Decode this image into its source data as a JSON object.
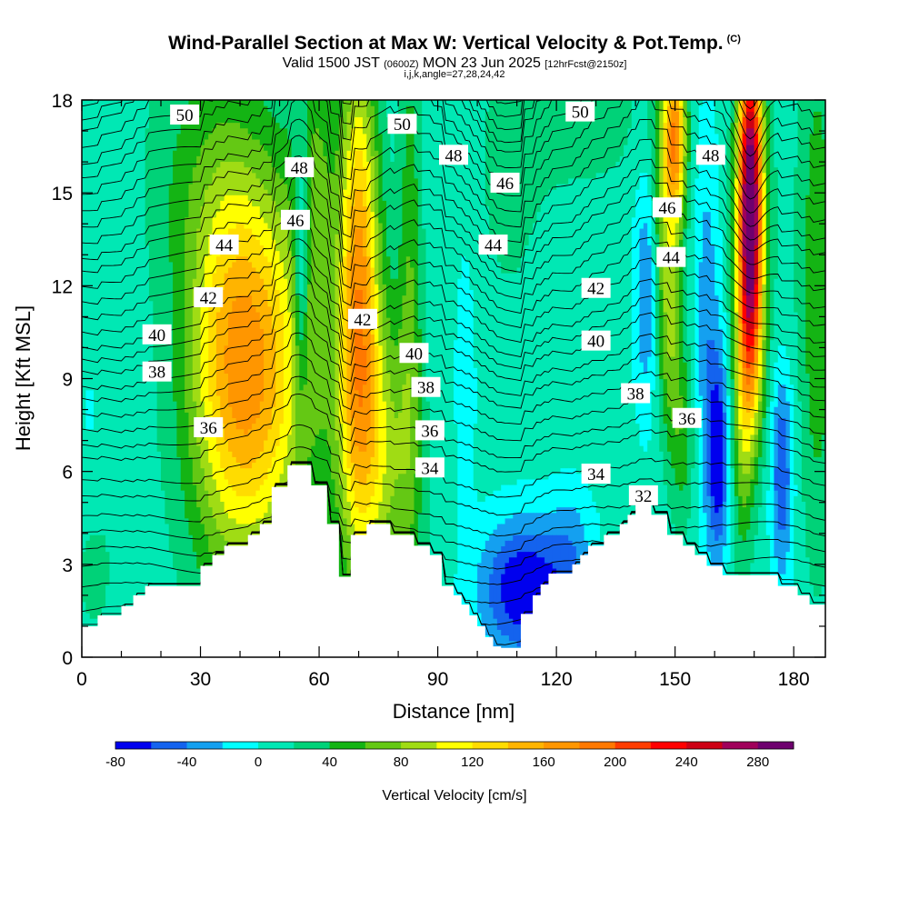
{
  "title": {
    "main": "Wind-Parallel Section at Max W: Vertical Velocity & Pot.Temp.",
    "copyright": "(C)",
    "valid_prefix": "Valid 1500 JST",
    "valid_utc": "(0600Z)",
    "valid_date": "MON 23 Jun 2025",
    "forecast": "[12hrFcst@2150z]",
    "indices": "i,j,k,angle=27,28,24,42"
  },
  "chart_data": {
    "type": "heatmap",
    "xlabel": "Distance [nm]",
    "ylabel": "Height [Kft MSL]",
    "xlim": [
      0,
      188
    ],
    "ylim": [
      0,
      18
    ],
    "x_ticks": [
      0,
      30,
      60,
      90,
      120,
      150,
      180
    ],
    "y_ticks": [
      0,
      3,
      6,
      9,
      12,
      15,
      18
    ],
    "colorbar": {
      "title": "Vertical Velocity [cm/s]",
      "levels": [
        -80,
        -60,
        -40,
        -20,
        0,
        20,
        40,
        60,
        80,
        100,
        120,
        140,
        160,
        180,
        200,
        220,
        240,
        260,
        280,
        300
      ],
      "labels": [
        -80,
        -40,
        0,
        40,
        80,
        120,
        160,
        200,
        240,
        280
      ],
      "colors": [
        "#0000ee",
        "#1463ee",
        "#14a0f0",
        "#00ffff",
        "#00e8b4",
        "#00d278",
        "#14b414",
        "#64c814",
        "#a0dc14",
        "#ffff00",
        "#ffdc00",
        "#ffb400",
        "#ff9600",
        "#ff7800",
        "#ff3c00",
        "#ff0000",
        "#cd0014",
        "#a0005a",
        "#6e006e"
      ]
    },
    "terrain_kft": [
      [
        0,
        1.0
      ],
      [
        4,
        1.0
      ],
      [
        4,
        1.35
      ],
      [
        10,
        1.35
      ],
      [
        10,
        1.65
      ],
      [
        13,
        1.65
      ],
      [
        13,
        2.0
      ],
      [
        16,
        2.0
      ],
      [
        16,
        2.3
      ],
      [
        30,
        2.3
      ],
      [
        30,
        2.95
      ],
      [
        33,
        2.95
      ],
      [
        33,
        3.3
      ],
      [
        36,
        3.3
      ],
      [
        36,
        3.6
      ],
      [
        42,
        3.6
      ],
      [
        42,
        3.95
      ],
      [
        45,
        3.95
      ],
      [
        45,
        4.3
      ],
      [
        48,
        4.3
      ],
      [
        48,
        5.5
      ],
      [
        52,
        5.5
      ],
      [
        52,
        6.2
      ],
      [
        58,
        6.2
      ],
      [
        58,
        5.55
      ],
      [
        62,
        5.55
      ],
      [
        62,
        4.3
      ],
      [
        65,
        4.3
      ],
      [
        65,
        2.6
      ],
      [
        68,
        2.6
      ],
      [
        68,
        3.95
      ],
      [
        72,
        3.95
      ],
      [
        72,
        4.3
      ],
      [
        78,
        4.3
      ],
      [
        78,
        3.95
      ],
      [
        84,
        3.95
      ],
      [
        84,
        3.6
      ],
      [
        88,
        3.6
      ],
      [
        88,
        3.3
      ],
      [
        91,
        3.3
      ],
      [
        91,
        2.3
      ],
      [
        94,
        2.3
      ],
      [
        94,
        2.0
      ],
      [
        96,
        2.0
      ],
      [
        96,
        1.7
      ],
      [
        98,
        1.7
      ],
      [
        98,
        1.35
      ],
      [
        100,
        1.35
      ],
      [
        100,
        1.0
      ],
      [
        102,
        1.0
      ],
      [
        102,
        0.65
      ],
      [
        104,
        0.65
      ],
      [
        104,
        0.35
      ],
      [
        106,
        0.35
      ],
      [
        106,
        0.3
      ],
      [
        111,
        0.3
      ],
      [
        111,
        1.4
      ],
      [
        114,
        1.4
      ],
      [
        114,
        2.0
      ],
      [
        116,
        2.0
      ],
      [
        116,
        2.35
      ],
      [
        118,
        2.35
      ],
      [
        118,
        2.7
      ],
      [
        124,
        2.7
      ],
      [
        124,
        3.0
      ],
      [
        126,
        3.0
      ],
      [
        126,
        3.3
      ],
      [
        128,
        3.3
      ],
      [
        128,
        3.6
      ],
      [
        132,
        3.6
      ],
      [
        132,
        3.95
      ],
      [
        136,
        3.95
      ],
      [
        136,
        4.3
      ],
      [
        138,
        4.3
      ],
      [
        138,
        4.6
      ],
      [
        140,
        4.6
      ],
      [
        140,
        5.0
      ],
      [
        144,
        5.0
      ],
      [
        144,
        4.6
      ],
      [
        148,
        4.6
      ],
      [
        148,
        3.95
      ],
      [
        152,
        3.95
      ],
      [
        152,
        3.6
      ],
      [
        155,
        3.6
      ],
      [
        155,
        3.3
      ],
      [
        158,
        3.3
      ],
      [
        158,
        2.95
      ],
      [
        162,
        2.95
      ],
      [
        162,
        2.65
      ],
      [
        176,
        2.65
      ],
      [
        176,
        2.3
      ],
      [
        181,
        2.3
      ],
      [
        181,
        2.0
      ],
      [
        184,
        2.0
      ],
      [
        184,
        1.7
      ],
      [
        188,
        1.7
      ]
    ],
    "velocity_features": [
      {
        "x": 43,
        "y": 9.3,
        "sx": 10.5,
        "sy": 4.6,
        "w": 150
      },
      {
        "x": 36,
        "y": 11.5,
        "sx": 7,
        "sy": 6,
        "w": 30
      },
      {
        "x": 70,
        "y": 12.2,
        "sx": 3.6,
        "sy": 5.2,
        "w": 150
      },
      {
        "x": 75,
        "y": 6.5,
        "sx": 7,
        "sy": 3.5,
        "w": 80
      },
      {
        "x": 83,
        "y": 12.5,
        "sx": 2.0,
        "sy": 6.5,
        "w": 45
      },
      {
        "x": 59,
        "y": 15.5,
        "sx": 3.5,
        "sy": 4.0,
        "w": 45
      },
      {
        "x": 55.5,
        "y": 12.8,
        "sx": 1.4,
        "sy": 3.0,
        "w": -75
      },
      {
        "x": 90,
        "y": 8.3,
        "sx": 2.2,
        "sy": 2.0,
        "w": -10
      },
      {
        "x": 97,
        "y": 9.0,
        "sx": 1.8,
        "sy": 3.0,
        "w": -25
      },
      {
        "x": 112,
        "y": 2.2,
        "sx": 8,
        "sy": 1.6,
        "w": -90
      },
      {
        "x": 124,
        "y": 3.5,
        "sx": 4,
        "sy": 1.5,
        "w": -30
      },
      {
        "x": 143,
        "y": 12.0,
        "sx": 2.2,
        "sy": 2.8,
        "w": -55
      },
      {
        "x": 147,
        "y": 14.5,
        "sx": 2.4,
        "sy": 3.5,
        "w": 55
      },
      {
        "x": 149,
        "y": 10.5,
        "sx": 2.2,
        "sy": 2.5,
        "w": 55
      },
      {
        "x": 152,
        "y": 7.0,
        "sx": 2.2,
        "sy": 2.0,
        "w": 40
      },
      {
        "x": 150,
        "y": 16.8,
        "sx": 2.0,
        "sy": 2.0,
        "w": 150
      },
      {
        "x": 158,
        "y": 10.5,
        "sx": 2.2,
        "sy": 5.0,
        "w": -40
      },
      {
        "x": 161,
        "y": 6.5,
        "sx": 1.8,
        "sy": 2.4,
        "w": -80
      },
      {
        "x": 169,
        "y": 15.8,
        "sx": 2.2,
        "sy": 3.2,
        "w": 260
      },
      {
        "x": 169,
        "y": 11.0,
        "sx": 2.4,
        "sy": 3.0,
        "w": 160
      },
      {
        "x": 167,
        "y": 7.0,
        "sx": 1.8,
        "sy": 3.0,
        "w": 45
      },
      {
        "x": 177,
        "y": 6.0,
        "sx": 2.0,
        "sy": 2.5,
        "w": -70
      },
      {
        "x": 177,
        "y": 13.0,
        "sx": 3.0,
        "sy": 5.0,
        "w": 10
      },
      {
        "x": 186,
        "y": 12.0,
        "sx": 3.0,
        "sy": 6.0,
        "w": 50
      },
      {
        "x": 3,
        "y": 3.0,
        "sx": 4,
        "sy": 2.0,
        "w": 20
      },
      {
        "x": 2,
        "y": 7.0,
        "sx": 3,
        "sy": 3.0,
        "w": -10
      },
      {
        "x": 125,
        "y": 17.5,
        "sx": 15,
        "sy": 2.0,
        "w": 20
      },
      {
        "x": 108,
        "y": 14.5,
        "sx": 6,
        "sy": 3.0,
        "w": 15
      },
      {
        "x": 25,
        "y": 16.0,
        "sx": 8,
        "sy": 3.0,
        "w": 20
      },
      {
        "x": 10,
        "y": 15.5,
        "sx": 3,
        "sy": 2.5,
        "w": -8
      }
    ],
    "theta_contours": [
      {
        "label": "32",
        "ref_y": 4.7,
        "lx": 142,
        "ly": 5.2
      },
      {
        "label": "34",
        "ref_y": 5.9,
        "lx": 88,
        "ly": 6.1
      },
      {
        "label": "34",
        "ref_y": 5.9,
        "lx": 130,
        "ly": 5.9
      },
      {
        "label": "36",
        "ref_y": 7.3,
        "lx": 32,
        "ly": 7.4
      },
      {
        "label": "36",
        "ref_y": 7.3,
        "lx": 88,
        "ly": 7.3
      },
      {
        "label": "36",
        "ref_y": 7.3,
        "lx": 153,
        "ly": 7.7
      },
      {
        "label": "38",
        "ref_y": 8.7,
        "lx": 19,
        "ly": 9.2
      },
      {
        "label": "38",
        "ref_y": 8.7,
        "lx": 87,
        "ly": 8.7
      },
      {
        "label": "38",
        "ref_y": 8.7,
        "lx": 140,
        "ly": 8.5
      },
      {
        "label": "40",
        "ref_y": 10.0,
        "lx": 19,
        "ly": 10.4
      },
      {
        "label": "40",
        "ref_y": 10.0,
        "lx": 84,
        "ly": 9.8
      },
      {
        "label": "40",
        "ref_y": 10.0,
        "lx": 130,
        "ly": 10.2
      },
      {
        "label": "42",
        "ref_y": 11.5,
        "lx": 32,
        "ly": 11.6
      },
      {
        "label": "42",
        "ref_y": 11.5,
        "lx": 71,
        "ly": 10.9
      },
      {
        "label": "42",
        "ref_y": 11.5,
        "lx": 130,
        "ly": 11.9
      },
      {
        "label": "44",
        "ref_y": 12.9,
        "lx": 36,
        "ly": 13.3
      },
      {
        "label": "44",
        "ref_y": 12.9,
        "lx": 104,
        "ly": 13.3
      },
      {
        "label": "44",
        "ref_y": 12.9,
        "lx": 149,
        "ly": 12.9
      },
      {
        "label": "46",
        "ref_y": 14.4,
        "lx": 54,
        "ly": 14.1
      },
      {
        "label": "46",
        "ref_y": 14.4,
        "lx": 107,
        "ly": 15.3
      },
      {
        "label": "46",
        "ref_y": 14.4,
        "lx": 148,
        "ly": 14.5
      },
      {
        "label": "48",
        "ref_y": 15.8,
        "lx": 55,
        "ly": 15.8
      },
      {
        "label": "48",
        "ref_y": 15.8,
        "lx": 94,
        "ly": 16.2
      },
      {
        "label": "48",
        "ref_y": 15.8,
        "lx": 159,
        "ly": 16.2
      },
      {
        "label": "50",
        "ref_y": 17.0,
        "lx": 26,
        "ly": 17.5
      },
      {
        "label": "50",
        "ref_y": 17.0,
        "lx": 81,
        "ly": 17.2
      },
      {
        "label": "50",
        "ref_y": 17.0,
        "lx": 126,
        "ly": 17.6
      }
    ],
    "theta_extra_lines_kft": [
      0.6,
      1.3,
      2.0,
      2.6,
      3.1,
      3.6,
      4.1,
      5.2,
      6.3,
      6.8,
      7.8,
      8.2,
      9.1,
      9.5,
      10.5,
      11.0,
      12.0,
      12.4,
      13.4,
      13.9,
      14.9,
      15.3,
      16.3,
      16.6,
      17.4,
      17.8
    ]
  }
}
